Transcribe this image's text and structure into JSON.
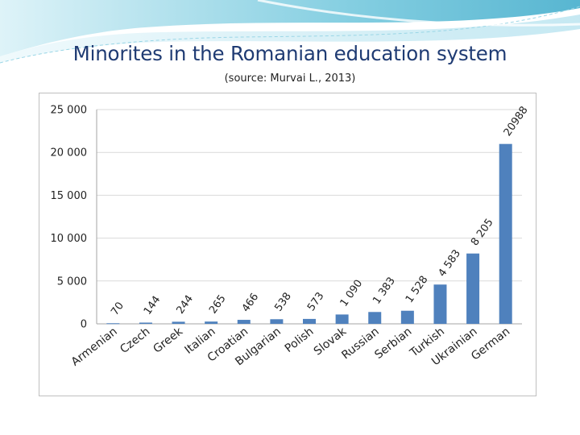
{
  "slide": {
    "title": "Minorites in the Romanian  education system",
    "subtitle": "(source: Murvai L., 2013)"
  },
  "colors": {
    "bar": "#4f81bd",
    "title": "#1f3b73",
    "grid": "#d9d9d9",
    "text": "#222222"
  },
  "chart_data": {
    "type": "bar",
    "title": "",
    "xlabel": "",
    "ylabel": "",
    "ylim": [
      0,
      25000
    ],
    "yticks": [
      0,
      5000,
      10000,
      15000,
      20000,
      25000
    ],
    "ytick_labels": [
      "0",
      "5 000",
      "10 000",
      "15 000",
      "20 000",
      "25 000"
    ],
    "grid": true,
    "legend": "none",
    "categories": [
      "Armenian",
      "Czech",
      "Greek",
      "Italian",
      "Croatian",
      "Bulgarian",
      "Polish",
      "Slovak",
      "Russian",
      "Serbian",
      "Turkish",
      "Ukrainian",
      "German"
    ],
    "values": [
      70,
      144,
      244,
      265,
      466,
      538,
      573,
      1090,
      1383,
      1528,
      4583,
      8205,
      20988
    ],
    "value_labels": [
      "70",
      "144",
      "244",
      "265",
      "466",
      "538",
      "573",
      "1 090",
      "1 383",
      "1 528",
      "4 583",
      "8 205",
      "20988"
    ]
  }
}
